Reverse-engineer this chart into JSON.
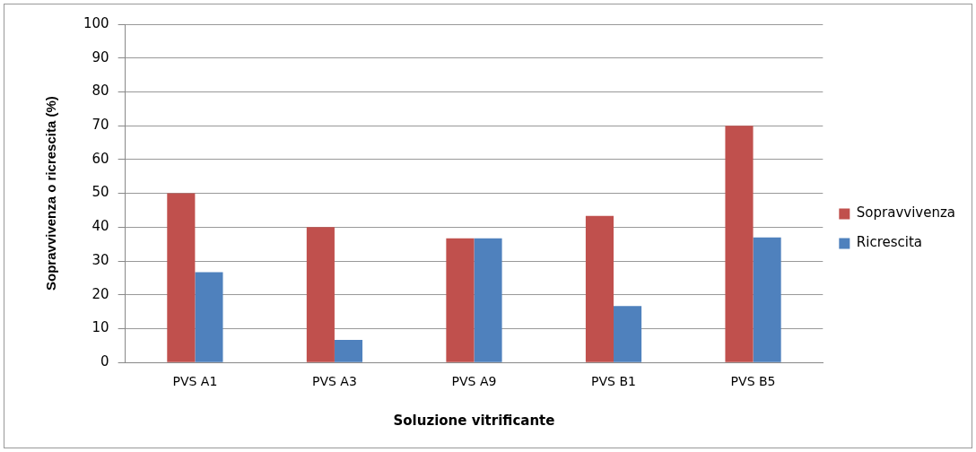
{
  "chart_data": {
    "type": "bar",
    "xlabel": "Soluzione vitrificante",
    "ylabel": "Sopravvivenza o ricrescita (%)",
    "categories": [
      "PVS A1",
      "PVS A3",
      "PVS A9",
      "PVS B1",
      "PVS B5"
    ],
    "series": [
      {
        "name": "Sopravvivenza",
        "color": "#c0504d",
        "values": [
          50,
          40,
          36.7,
          43.3,
          70
        ]
      },
      {
        "name": "Ricrescita",
        "color": "#4f81bd",
        "values": [
          26.7,
          6.7,
          36.7,
          16.7,
          37
        ]
      }
    ],
    "ylim": [
      0,
      100
    ],
    "yticks": [
      0,
      10,
      20,
      30,
      40,
      50,
      60,
      70,
      80,
      90,
      100
    ],
    "grid": "y",
    "legend": "right"
  }
}
